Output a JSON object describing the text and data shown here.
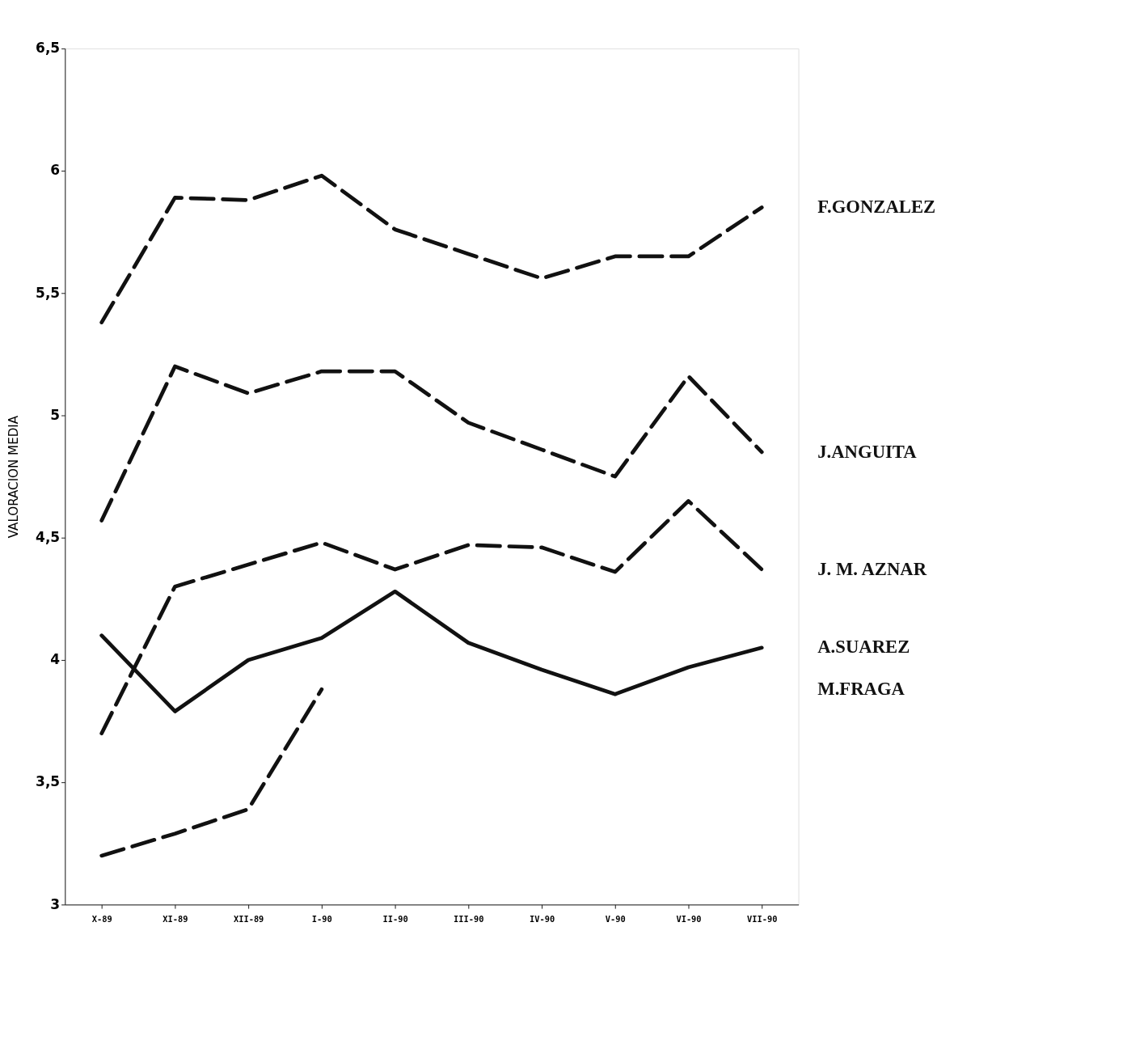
{
  "chart_data": {
    "type": "line",
    "ylabel": "VALORACION MEDIA",
    "categories": [
      "X-89",
      "XI-89",
      "XII-89",
      "I-90",
      "II-90",
      "III-90",
      "IV-90",
      "V-90",
      "VI-90",
      "VII-90"
    ],
    "ylim": [
      3,
      6.5
    ],
    "yticks": [
      3,
      {
        "value": 3.5,
        "label": "3,5"
      },
      4,
      {
        "value": 4.5,
        "label": "4,5"
      },
      5,
      {
        "value": 5.5,
        "label": "5,5"
      },
      6,
      {
        "value": 6.5,
        "label": "6,5"
      }
    ],
    "grid": false,
    "series": [
      {
        "name": "F.GONZALEZ",
        "color": "#111111",
        "line_style": "dashed",
        "values": [
          5.38,
          5.89,
          5.88,
          5.98,
          5.76,
          5.66,
          5.56,
          5.65,
          5.65,
          5.85
        ]
      },
      {
        "name": "J.ANGUITA",
        "color": "#111111",
        "line_style": "dashed",
        "values": [
          4.57,
          5.2,
          5.09,
          5.18,
          5.18,
          4.97,
          4.86,
          4.75,
          5.16,
          4.85
        ]
      },
      {
        "name": "J. M. AZNAR",
        "color": "#111111",
        "line_style": "dashed",
        "values": [
          3.7,
          4.3,
          4.39,
          4.48,
          4.37,
          4.47,
          4.46,
          4.36,
          4.65,
          4.37
        ]
      },
      {
        "name": "A.SUAREZ",
        "color": "#111111",
        "line_style": "solid",
        "values": [
          4.1,
          3.79,
          4.0,
          4.09,
          4.28,
          4.07,
          3.96,
          3.86,
          3.97,
          4.05
        ]
      },
      {
        "name": "M.FRAGA",
        "color": "#111111",
        "line_style": "dashed",
        "values": [
          3.2,
          3.29,
          3.39,
          3.88,
          null,
          null,
          null,
          null,
          null,
          null
        ]
      }
    ]
  }
}
